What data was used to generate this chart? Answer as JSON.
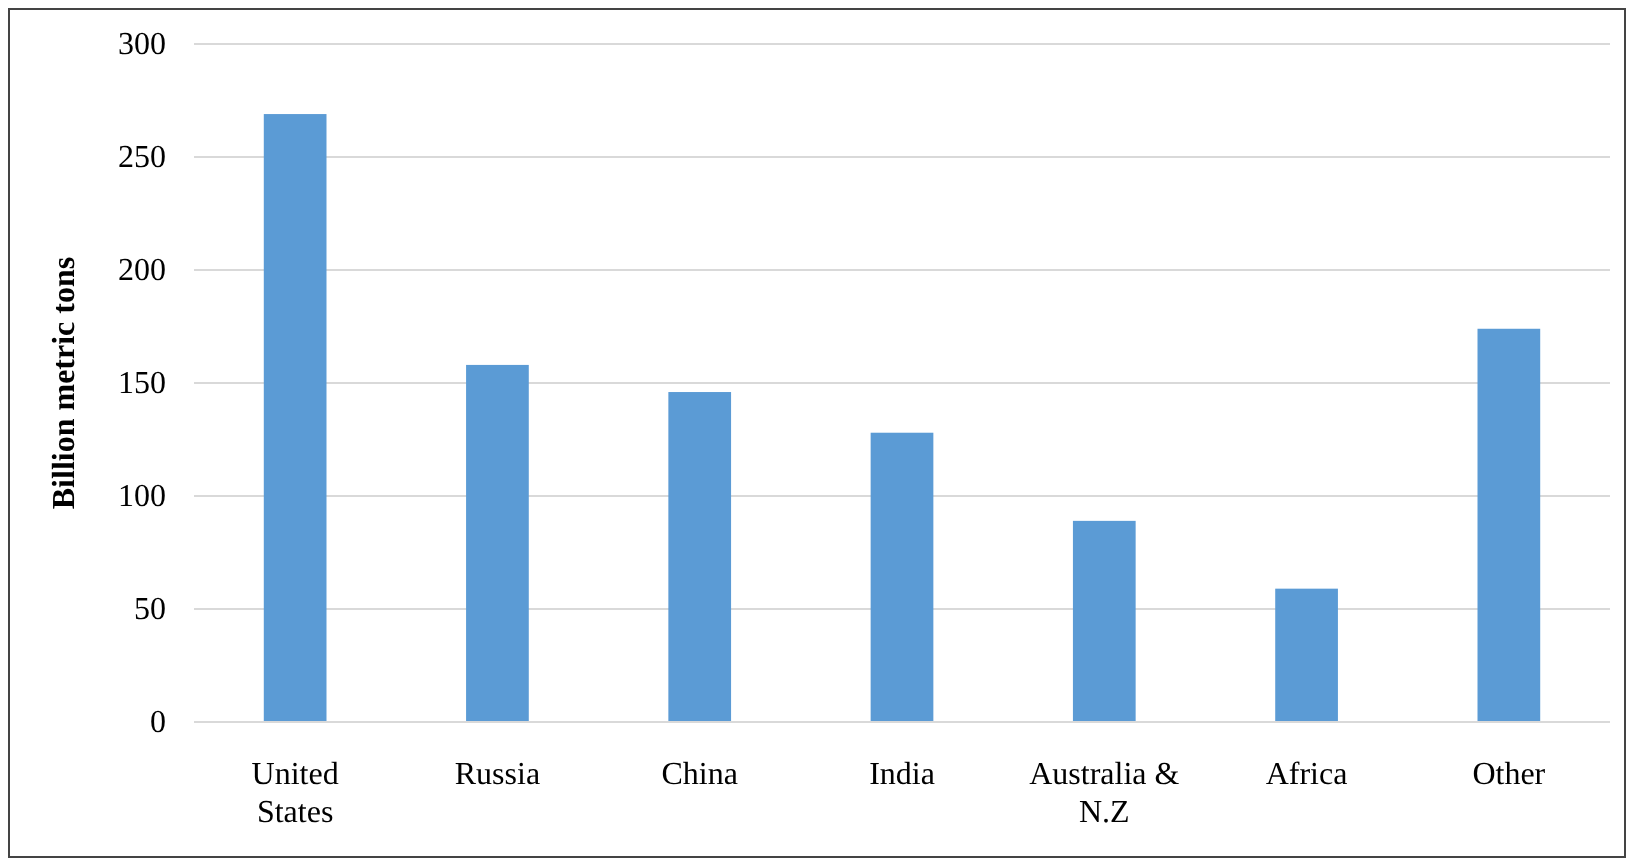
{
  "chart_data": {
    "type": "bar",
    "ylabel": "Billion metric tons",
    "categories": [
      "United States",
      "Russia",
      "China",
      "India",
      "Australia & N.Z",
      "Africa",
      "Other"
    ],
    "values": [
      269,
      158,
      146,
      128,
      89,
      59,
      174
    ],
    "color": "#5b9bd5",
    "ylim": [
      0,
      300
    ],
    "yticks": [
      0,
      50,
      100,
      150,
      200,
      250,
      300
    ],
    "grid": "y"
  }
}
